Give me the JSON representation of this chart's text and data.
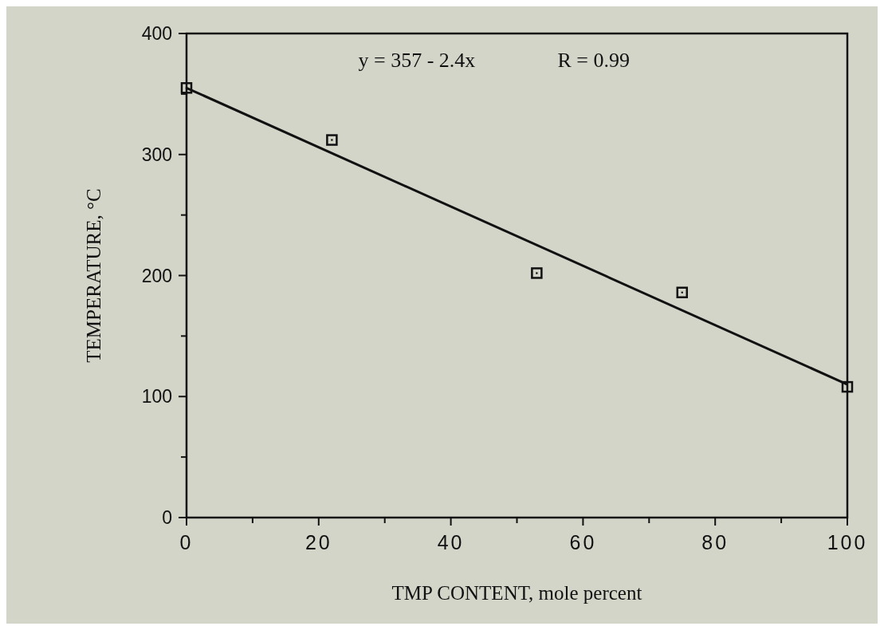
{
  "chart_data": {
    "type": "scatter",
    "xlabel": "TMP CONTENT, mole percent",
    "ylabel": "TEMPERATURE, °C",
    "annotations": [
      "y = 357 - 2.4x",
      "R = 0.99"
    ],
    "xlim": [
      0,
      100
    ],
    "ylim": [
      0,
      400
    ],
    "xticks": [
      0,
      {
        "value": 10,
        "label": null
      },
      20,
      {
        "value": 30,
        "label": null
      },
      40,
      {
        "value": 50,
        "label": null
      },
      60,
      {
        "value": 70,
        "label": null
      },
      80,
      {
        "value": 90,
        "label": null
      },
      100
    ],
    "yticks": [
      0,
      {
        "value": 50,
        "label": null
      },
      100,
      {
        "value": 150,
        "label": null
      },
      200,
      {
        "value": 250,
        "label": null
      },
      300,
      {
        "value": 350,
        "label": null
      },
      400
    ],
    "grid": false,
    "marker": "square",
    "series": [
      {
        "color": "#111111",
        "x": [
          0,
          22,
          53,
          75,
          100
        ],
        "values": [
          355,
          312,
          202,
          186,
          108
        ]
      },
      {
        "type": "line",
        "color": "#111111",
        "x": [
          0,
          100
        ],
        "values": [
          355,
          110
        ],
        "line_style": "solid",
        "marker": "none"
      }
    ]
  }
}
